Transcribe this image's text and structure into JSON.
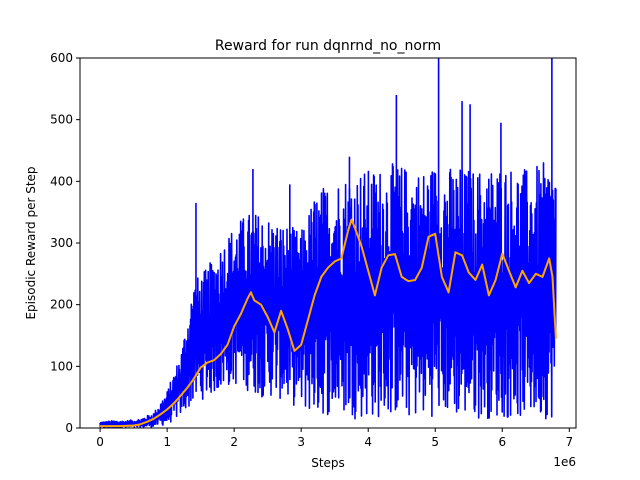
{
  "chart_data": {
    "type": "line",
    "title": "Reward for run dqnrnd_no_norm",
    "xlabel": "Steps",
    "ylabel": "Episodic Reward per Step",
    "x_offset_label": "1e6",
    "xlim": [
      -0.3,
      7.1
    ],
    "ylim": [
      0,
      600
    ],
    "x_ticks": [
      0,
      1,
      2,
      3,
      4,
      5,
      6,
      7
    ],
    "x_tick_labels": [
      "0",
      "1",
      "2",
      "3",
      "4",
      "5",
      "6",
      "7"
    ],
    "y_ticks": [
      0,
      100,
      200,
      300,
      400,
      500,
      600
    ],
    "y_tick_labels": [
      "0",
      "100",
      "200",
      "300",
      "400",
      "500",
      "600"
    ],
    "grid": false,
    "series": [
      {
        "color": "#0000ff",
        "style": "raw-noisy",
        "x": [
          0,
          0.2,
          0.4,
          0.6,
          0.8,
          1.0,
          1.2,
          1.4,
          1.6,
          1.8,
          2.0,
          2.2,
          2.4,
          2.6,
          2.8,
          3.0,
          3.2,
          3.4,
          3.6,
          3.8,
          4.0,
          4.2,
          4.4,
          4.6,
          4.8,
          5.0,
          5.2,
          5.4,
          5.6,
          5.8,
          6.0,
          6.2,
          6.4,
          6.6,
          6.8
        ],
        "high": [
          10,
          12,
          12,
          15,
          25,
          60,
          120,
          240,
          260,
          300,
          330,
          350,
          350,
          340,
          330,
          320,
          380,
          400,
          410,
          420,
          420,
          425,
          430,
          425,
          420,
          430,
          425,
          425,
          420,
          425,
          430,
          425,
          420,
          430,
          430
        ],
        "low": [
          0,
          0,
          0,
          0,
          2,
          5,
          20,
          40,
          50,
          60,
          70,
          60,
          50,
          50,
          40,
          30,
          20,
          20,
          20,
          15,
          15,
          15,
          20,
          15,
          15,
          20,
          20,
          15,
          15,
          15,
          15,
          15,
          15,
          15,
          15
        ],
        "spikes": [
          {
            "x": 1.43,
            "y": 365
          },
          {
            "x": 2.28,
            "y": 420
          },
          {
            "x": 2.83,
            "y": 395
          },
          {
            "x": 3.72,
            "y": 440
          },
          {
            "x": 4.42,
            "y": 540
          },
          {
            "x": 5.05,
            "y": 600
          },
          {
            "x": 5.4,
            "y": 530
          },
          {
            "x": 5.52,
            "y": 525
          },
          {
            "x": 5.98,
            "y": 495
          },
          {
            "x": 6.74,
            "y": 600
          }
        ]
      },
      {
        "color": "#ffa500",
        "style": "smoothed",
        "x": [
          0,
          0.3,
          0.5,
          0.6,
          0.7,
          0.8,
          0.9,
          1.0,
          1.1,
          1.2,
          1.3,
          1.4,
          1.5,
          1.6,
          1.7,
          1.8,
          1.9,
          2.0,
          2.1,
          2.2,
          2.25,
          2.3,
          2.4,
          2.5,
          2.6,
          2.7,
          2.8,
          2.9,
          3.0,
          3.1,
          3.2,
          3.3,
          3.4,
          3.5,
          3.6,
          3.7,
          3.75,
          3.8,
          3.9,
          4.0,
          4.1,
          4.2,
          4.3,
          4.4,
          4.5,
          4.6,
          4.7,
          4.8,
          4.9,
          5.0,
          5.1,
          5.2,
          5.3,
          5.4,
          5.5,
          5.6,
          5.7,
          5.8,
          5.9,
          6.0,
          6.1,
          6.2,
          6.3,
          6.4,
          6.5,
          6.6,
          6.7,
          6.75,
          6.8
        ],
        "y": [
          3,
          3,
          4,
          6,
          10,
          15,
          22,
          30,
          40,
          52,
          65,
          80,
          98,
          106,
          110,
          120,
          135,
          165,
          185,
          210,
          220,
          207,
          200,
          180,
          155,
          190,
          160,
          125,
          135,
          175,
          215,
          245,
          260,
          270,
          275,
          320,
          338,
          325,
          295,
          255,
          215,
          260,
          280,
          282,
          245,
          238,
          240,
          260,
          310,
          315,
          245,
          220,
          285,
          280,
          252,
          240,
          265,
          215,
          240,
          283,
          255,
          228,
          255,
          235,
          250,
          245,
          275,
          245,
          145
        ]
      }
    ]
  }
}
